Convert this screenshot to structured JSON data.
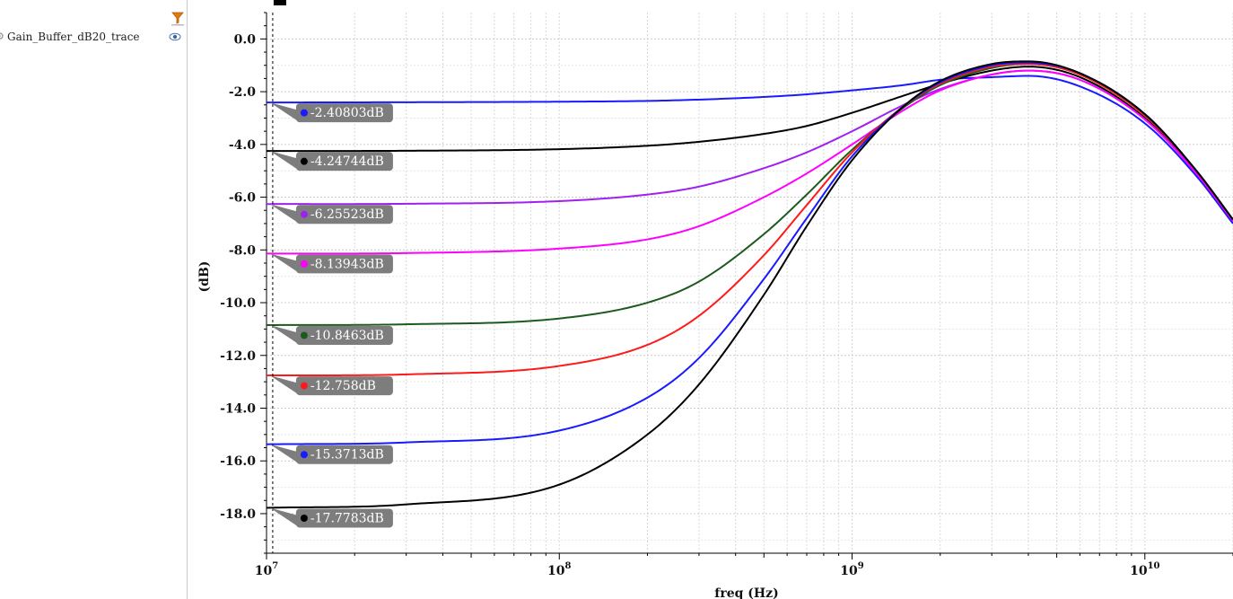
{
  "sidebar": {
    "trace_label": "Gain_Buffer_dB20_trace",
    "trace_icon": "cog-icon",
    "visibility_icon": "eye-icon",
    "filter_icon": "filter-icon"
  },
  "chart_data": {
    "type": "line",
    "title": "",
    "xlabel": "freq (Hz)",
    "ylabel": "(dB)",
    "x_scale": "log",
    "xlim": [
      10000000,
      20000000000
    ],
    "ylim": [
      -19.5,
      1.0
    ],
    "x_ticks": [
      {
        "value": 10000000,
        "base": "10",
        "exp": "7"
      },
      {
        "value": 100000000,
        "base": "10",
        "exp": "8"
      },
      {
        "value": 1000000000,
        "base": "10",
        "exp": "9"
      },
      {
        "value": 10000000000,
        "base": "10",
        "exp": "10"
      }
    ],
    "y_ticks": [
      {
        "value": 0,
        "label": "0.0"
      },
      {
        "value": -2,
        "label": "-2.0"
      },
      {
        "value": -4,
        "label": "-4.0"
      },
      {
        "value": -6,
        "label": "-6.0"
      },
      {
        "value": -8,
        "label": "-8.0"
      },
      {
        "value": -10,
        "label": "-10.0"
      },
      {
        "value": -12,
        "label": "-12.0"
      },
      {
        "value": -14,
        "label": "-14.0"
      },
      {
        "value": -16,
        "label": "-16.0"
      },
      {
        "value": -18,
        "label": "-18.0"
      }
    ],
    "grid": true,
    "cursor_x": 10500000,
    "x": [
      10000000,
      30000000,
      100000000,
      200000000,
      300000000,
      500000000,
      700000000,
      1000000000,
      1500000000,
      2000000000,
      3000000000,
      4000000000,
      6000000000,
      10000000000,
      15000000000,
      20000000000
    ],
    "series": [
      {
        "color": "#1a1aff",
        "marker": "-2.40803dB",
        "values": [
          -2.41,
          -2.4,
          -2.38,
          -2.35,
          -2.3,
          -2.2,
          -2.1,
          -1.95,
          -1.75,
          -1.55,
          -1.45,
          -1.4,
          -1.8,
          -3.2,
          -5.2,
          -7.0
        ]
      },
      {
        "color": "#000000",
        "marker": "-4.24744dB",
        "values": [
          -4.25,
          -4.24,
          -4.18,
          -4.05,
          -3.9,
          -3.6,
          -3.3,
          -2.8,
          -2.15,
          -1.7,
          -1.2,
          -1.05,
          -1.45,
          -3.0,
          -5.1,
          -6.9
        ]
      },
      {
        "color": "#a020f0",
        "marker": "-6.25523dB",
        "values": [
          -6.26,
          -6.25,
          -6.15,
          -5.9,
          -5.6,
          -4.9,
          -4.3,
          -3.5,
          -2.5,
          -1.9,
          -1.35,
          -1.2,
          -1.55,
          -3.05,
          -5.1,
          -6.9
        ]
      },
      {
        "color": "#ff00ff",
        "marker": "-8.13943dB",
        "values": [
          -8.14,
          -8.12,
          -7.95,
          -7.6,
          -7.1,
          -6.0,
          -5.1,
          -4.0,
          -2.7,
          -1.95,
          -1.35,
          -1.2,
          -1.55,
          -3.05,
          -5.1,
          -6.9
        ]
      },
      {
        "color": "#1e5a1e",
        "marker": "-10.8463dB",
        "values": [
          -10.85,
          -10.82,
          -10.6,
          -10.0,
          -9.2,
          -7.4,
          -5.9,
          -4.2,
          -2.6,
          -1.75,
          -1.1,
          -0.95,
          -1.35,
          -2.9,
          -5.0,
          -6.85
        ]
      },
      {
        "color": "#ff1a1a",
        "marker": "-12.758dB",
        "values": [
          -12.76,
          -12.72,
          -12.4,
          -11.6,
          -10.5,
          -8.2,
          -6.3,
          -4.3,
          -2.55,
          -1.7,
          -1.05,
          -0.95,
          -1.35,
          -2.9,
          -5.0,
          -6.85
        ]
      },
      {
        "color": "#1a1aff",
        "marker": "-15.3713dB",
        "values": [
          -15.37,
          -15.3,
          -14.85,
          -13.6,
          -12.1,
          -9.1,
          -6.8,
          -4.45,
          -2.55,
          -1.65,
          -1.0,
          -0.9,
          -1.3,
          -2.85,
          -5.0,
          -6.85
        ]
      },
      {
        "color": "#000000",
        "marker": "-17.7783dB",
        "values": [
          -17.78,
          -17.65,
          -16.9,
          -15.0,
          -13.1,
          -9.7,
          -7.1,
          -4.6,
          -2.55,
          -1.6,
          -0.95,
          -0.85,
          -1.3,
          -2.85,
          -5.0,
          -6.85
        ]
      }
    ]
  }
}
